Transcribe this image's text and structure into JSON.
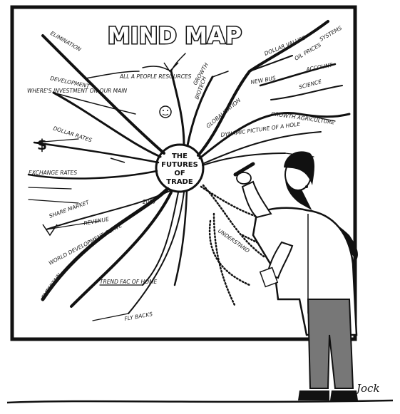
{
  "title": "MIND MAP",
  "center": {
    "line1": "THE",
    "line2": "FUTURES",
    "line3": "OF",
    "line4": "TRADE"
  },
  "branches": {
    "b1": "ELIMINATION",
    "b2": "DEVELOPMENT",
    "b3": "WHERE'S INVESTMENT ON OUR MAIN",
    "b4": "DOLLAR RATES",
    "b5": "EXCHANGE RATES",
    "b6": "SHARE MARKET",
    "b7": "REVENUE",
    "b8": "2007",
    "b9": "WORLD DEVELOPMENT CURVE",
    "b10": "ENTERTAIN...",
    "b11": "TREND FAC OF HOME",
    "b12": "FLY BACKS",
    "b13": "GROWTH",
    "b14": "GLOBALISATION",
    "b15": "BIOTECH",
    "b16": "DYNAMIC PICTURE OF A HOLE",
    "b17": "NEW BUS",
    "b18": "DOLLAR VALUES",
    "b19": "OIL PRICES",
    "b20": "SCIENCE",
    "b21": "ACCOUNT",
    "b22": "GROWTH AGRICULTURE",
    "b23": "ALL A PEOPLE RESOURCES",
    "b24": "SYSTEMS",
    "b25": "UNDERSTAND"
  },
  "signature": "Jock"
}
